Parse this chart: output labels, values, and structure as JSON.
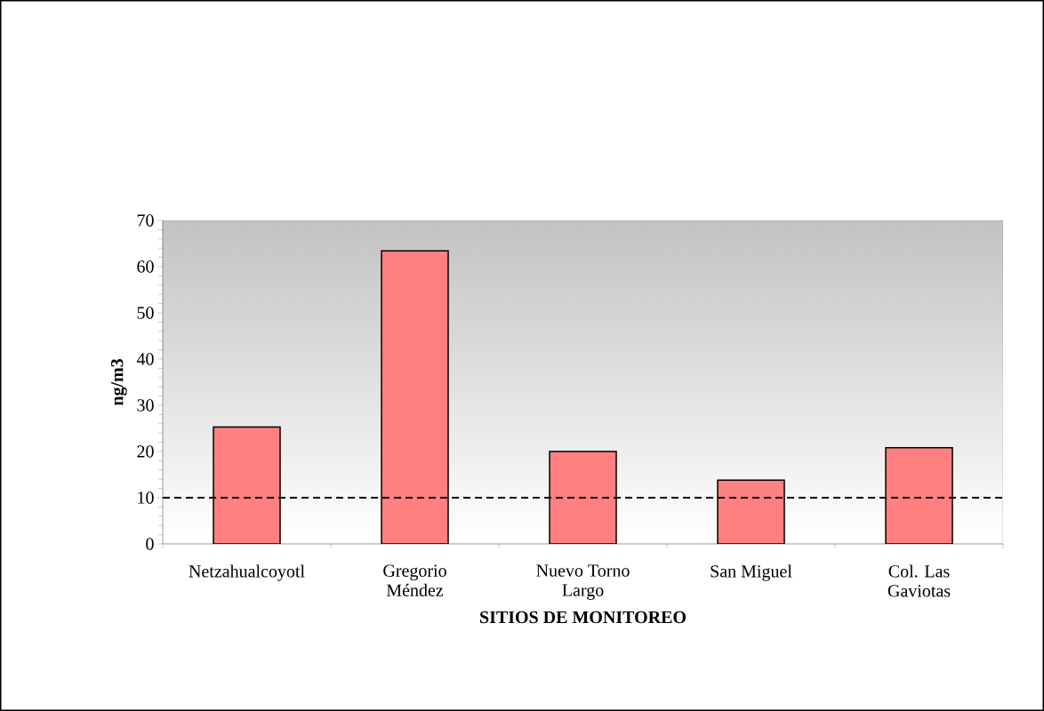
{
  "chart_data": {
    "type": "bar",
    "xlabel": "SITIOS DE MONITOREO",
    "ylabel": "ng/m3",
    "categories": [
      "Netzahualcoyotl",
      "Gregorio Méndez",
      "Nuevo Torno Largo",
      "San Miguel",
      "Col. Las Gaviotas"
    ],
    "values": [
      25.3,
      63.4,
      20.0,
      13.8,
      20.8
    ],
    "color": "#ff8080",
    "ylim": [
      0,
      70
    ],
    "yticks": [
      0,
      10,
      20,
      30,
      40,
      50,
      60,
      70
    ],
    "ref_lines": [
      {
        "axis": "y",
        "value": 10,
        "color": "#000000",
        "line_style": "dashed"
      }
    ],
    "grid": false
  }
}
